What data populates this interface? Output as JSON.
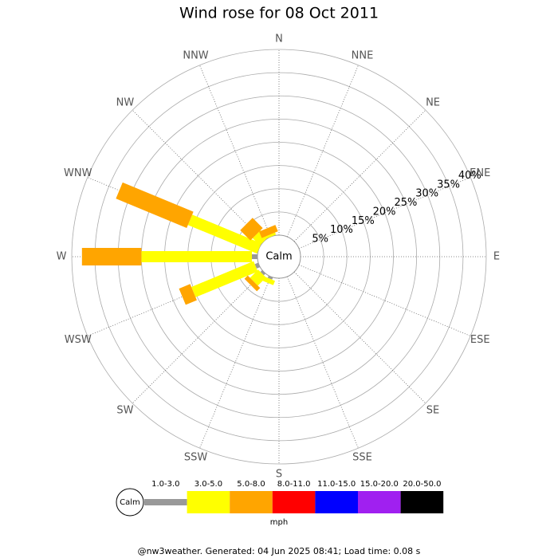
{
  "chart_data": {
    "type": "windrose",
    "title": "Wind rose for 08 Oct 2011",
    "directions": [
      "N",
      "NNE",
      "NE",
      "ENE",
      "E",
      "ESE",
      "SE",
      "SSE",
      "S",
      "SSW",
      "SW",
      "WSW",
      "W",
      "WNW",
      "NW",
      "NNW"
    ],
    "series": [
      {
        "name": "1.0-3.0",
        "color": "#999999",
        "values": [
          0,
          0,
          0,
          0,
          0,
          0,
          0,
          0,
          0,
          0.5,
          0.5,
          0.8,
          1.2,
          0,
          0,
          0
        ]
      },
      {
        "name": "3.0-5.0",
        "color": "#ffff00",
        "values": [
          0,
          0,
          0,
          0,
          0,
          0,
          0,
          0,
          0,
          1,
          2.5,
          14.5,
          23.8,
          16.1,
          2.2,
          0.5
        ]
      },
      {
        "name": "5.0-8.0",
        "color": "#ffa500",
        "values": [
          0,
          0,
          0,
          0,
          0,
          0,
          0,
          0,
          0,
          0,
          1,
          2.6,
          12.8,
          16.5,
          3.1,
          1.5
        ]
      },
      {
        "name": "8.0-11.0",
        "color": "#ff0000",
        "values": [
          0,
          0,
          0,
          0,
          0,
          0,
          0,
          0,
          0,
          0,
          0,
          0,
          0,
          0,
          0,
          0
        ]
      },
      {
        "name": "11.0-15.0",
        "color": "#0000ff",
        "values": [
          0,
          0,
          0,
          0,
          0,
          0,
          0,
          0,
          0,
          0,
          0,
          0,
          0,
          0,
          0,
          0
        ]
      },
      {
        "name": "15.0-20.0",
        "color": "#a020f0",
        "values": [
          0,
          0,
          0,
          0,
          0,
          0,
          0,
          0,
          0,
          0,
          0,
          0,
          0,
          0,
          0,
          0
        ]
      },
      {
        "name": "20.0-50.0",
        "color": "#000000",
        "values": [
          0,
          0,
          0,
          0,
          0,
          0,
          0,
          0,
          0,
          0,
          0,
          0,
          0,
          0,
          0,
          0
        ]
      }
    ],
    "rlim": [
      0,
      40
    ],
    "rticks": [
      {
        "value": 5,
        "label": "5%"
      },
      {
        "value": 10,
        "label": "10%"
      },
      {
        "value": 15,
        "label": "15%"
      },
      {
        "value": 20,
        "label": "20%"
      },
      {
        "value": 25,
        "label": "25%"
      },
      {
        "value": 30,
        "label": "30%"
      },
      {
        "value": 35,
        "label": "35%"
      },
      {
        "value": 40,
        "label": "40%"
      }
    ],
    "calm_label": "Calm",
    "unit": "mph"
  },
  "footer": "@nw3weather. Generated: 04 Jun 2025 08:41; Load time: 0.08 s"
}
